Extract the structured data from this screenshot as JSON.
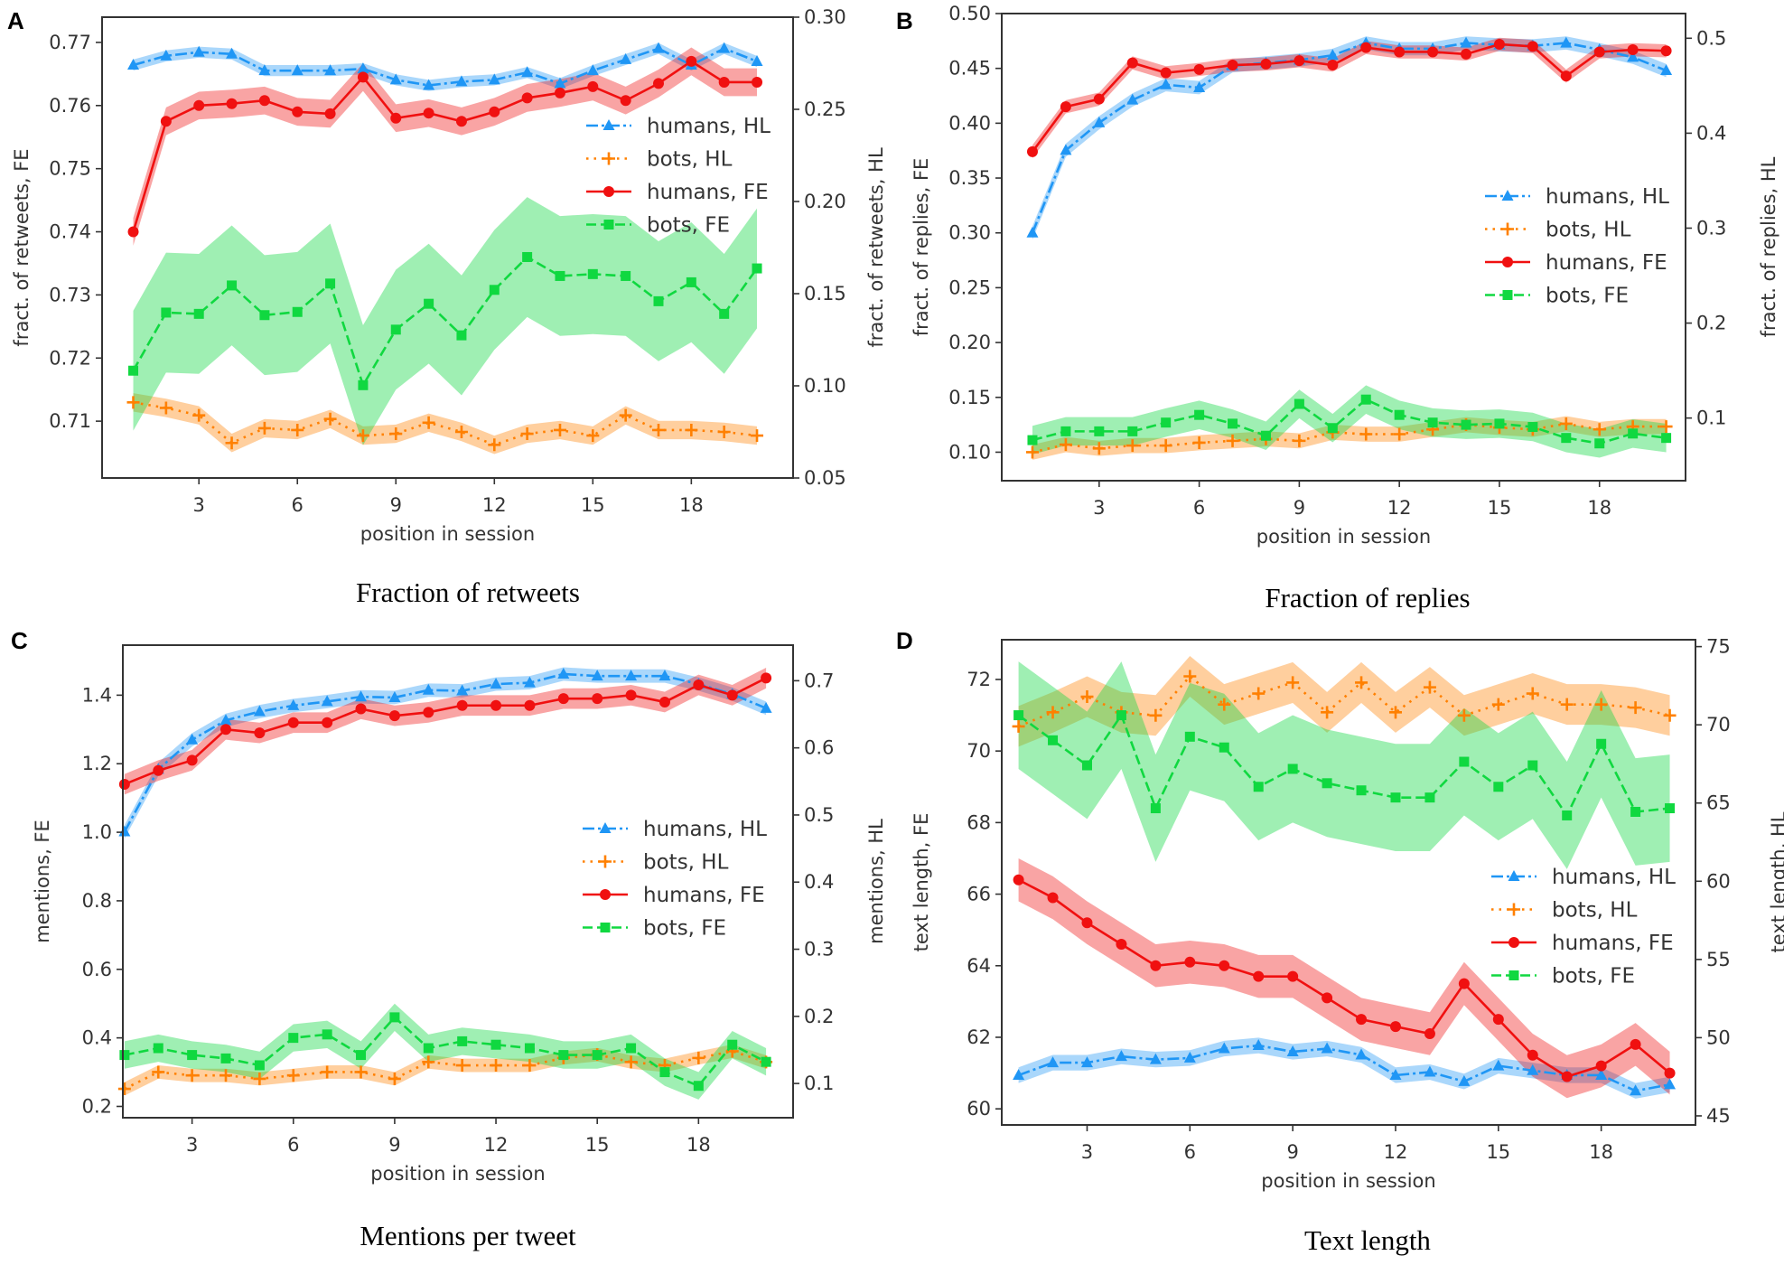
{
  "chart_data": [
    {
      "type": "line",
      "panel_label": "A",
      "title": "Fraction of retweets",
      "xlabel": "position in session",
      "ylabel_left": "fract. of retweets, FE",
      "ylabel_right": "fract. of retweets, HL",
      "xlim": [
        0.05,
        21.1
      ],
      "ylim_left": [
        0.701,
        0.774
      ],
      "ylim_right": [
        0.05,
        0.3
      ],
      "xticks": [
        "3",
        "6",
        "9",
        "12",
        "15",
        "18"
      ],
      "yticks_left": [
        "0.71",
        "0.72",
        "0.73",
        "0.74",
        "0.75",
        "0.76",
        "0.77"
      ],
      "yticks_right": [
        "0.05",
        "0.10",
        "0.15",
        "0.20",
        "0.25",
        "0.30"
      ],
      "grid": false,
      "legend": "center-right",
      "x": [
        1,
        2,
        3,
        4,
        5,
        6,
        7,
        8,
        9,
        10,
        11,
        12,
        13,
        14,
        15,
        16,
        17,
        18,
        19,
        20
      ],
      "series": [
        {
          "name": "humans, HL",
          "axis": "right",
          "color": "#1f96f5",
          "style": "dashdot",
          "marker": "triangle",
          "band": 0.003,
          "values": [
            0.274,
            0.279,
            0.281,
            0.28,
            0.271,
            0.271,
            0.271,
            0.272,
            0.266,
            0.263,
            0.265,
            0.266,
            0.27,
            0.264,
            0.271,
            0.277,
            0.283,
            0.274,
            0.283,
            0.276
          ]
        },
        {
          "name": "bots, HL",
          "axis": "right",
          "color": "#ff8000",
          "style": "dotted",
          "marker": "plus",
          "band": 0.005,
          "values": [
            0.091,
            0.088,
            0.084,
            0.069,
            0.077,
            0.076,
            0.082,
            0.073,
            0.074,
            0.08,
            0.075,
            0.068,
            0.074,
            0.076,
            0.073,
            0.084,
            0.076,
            0.076,
            0.075,
            0.073
          ]
        },
        {
          "name": "humans, FE",
          "axis": "left",
          "color": "#f01010",
          "style": "solid",
          "marker": "circle",
          "band": 0.0022,
          "values": [
            0.74,
            0.7575,
            0.76,
            0.7603,
            0.7608,
            0.759,
            0.7587,
            0.7645,
            0.758,
            0.7588,
            0.7575,
            0.759,
            0.7612,
            0.762,
            0.763,
            0.7608,
            0.7635,
            0.767,
            0.7637,
            0.7637
          ]
        },
        {
          "name": "bots, FE",
          "axis": "left",
          "color": "#10d840",
          "style": "dashed",
          "marker": "square",
          "band": 0.0095,
          "values": [
            0.718,
            0.7272,
            0.727,
            0.7315,
            0.7268,
            0.7273,
            0.7318,
            0.7157,
            0.7245,
            0.7286,
            0.7236,
            0.7308,
            0.736,
            0.733,
            0.7333,
            0.733,
            0.729,
            0.732,
            0.727,
            0.7342
          ]
        }
      ]
    },
    {
      "type": "line",
      "panel_label": "B",
      "title": "Fraction of replies",
      "xlabel": "position in session",
      "ylabel_left": "fract. of replies, FE",
      "ylabel_right": "fract. of replies, HL",
      "xlim": [
        0.08,
        20.58
      ],
      "ylim_left": [
        0.074,
        0.5
      ],
      "ylim_right": [
        0.034,
        0.526
      ],
      "xticks": [
        "3",
        "6",
        "9",
        "12",
        "15",
        "18"
      ],
      "yticks_left": [
        "0.10",
        "0.15",
        "0.20",
        "0.25",
        "0.30",
        "0.35",
        "0.40",
        "0.45",
        "0.50"
      ],
      "yticks_right": [
        "0.1",
        "0.2",
        "0.3",
        "0.4",
        "0.5"
      ],
      "grid": false,
      "legend": "center-right",
      "x": [
        1,
        2,
        3,
        4,
        5,
        6,
        7,
        8,
        9,
        10,
        11,
        12,
        13,
        14,
        15,
        16,
        17,
        18,
        19,
        20
      ],
      "series": [
        {
          "name": "humans, HL",
          "axis": "right",
          "color": "#1f96f5",
          "style": "dashdot",
          "marker": "triangle",
          "band": 0.007,
          "values": [
            0.295,
            0.382,
            0.411,
            0.435,
            0.451,
            0.448,
            0.471,
            0.474,
            0.477,
            0.482,
            0.495,
            0.489,
            0.489,
            0.495,
            0.493,
            0.492,
            0.495,
            0.488,
            0.48,
            0.466
          ]
        },
        {
          "name": "bots, HL",
          "axis": "right",
          "color": "#ff8000",
          "style": "dotted",
          "marker": "plus",
          "band": 0.008,
          "values": [
            0.064,
            0.072,
            0.068,
            0.071,
            0.071,
            0.074,
            0.076,
            0.078,
            0.076,
            0.085,
            0.083,
            0.083,
            0.088,
            0.093,
            0.09,
            0.088,
            0.094,
            0.088,
            0.091,
            0.091
          ]
        },
        {
          "name": "humans, FE",
          "axis": "left",
          "color": "#f01010",
          "style": "solid",
          "marker": "circle",
          "band": 0.006,
          "values": [
            0.374,
            0.415,
            0.422,
            0.455,
            0.446,
            0.449,
            0.453,
            0.454,
            0.457,
            0.453,
            0.469,
            0.465,
            0.465,
            0.463,
            0.472,
            0.47,
            0.443,
            0.465,
            0.467,
            0.466
          ]
        },
        {
          "name": "bots, FE",
          "axis": "left",
          "color": "#10d840",
          "style": "dashed",
          "marker": "square",
          "band": 0.013,
          "values": [
            0.111,
            0.119,
            0.119,
            0.119,
            0.127,
            0.134,
            0.126,
            0.115,
            0.144,
            0.122,
            0.148,
            0.134,
            0.127,
            0.125,
            0.126,
            0.123,
            0.113,
            0.108,
            0.117,
            0.113
          ]
        }
      ]
    },
    {
      "type": "line",
      "panel_label": "C",
      "title": "Mentions per tweet",
      "xlabel": "position in session",
      "ylabel_left": "mentions, FE",
      "ylabel_right": "mentions, HL",
      "xlim": [
        0.95,
        20.8
      ],
      "ylim_left": [
        0.167,
        1.546
      ],
      "ylim_right": [
        0.049,
        0.753
      ],
      "xticks": [
        "3",
        "6",
        "9",
        "12",
        "15",
        "18"
      ],
      "yticks_left": [
        "0.2",
        "0.4",
        "0.6",
        "0.8",
        "1.0",
        "1.2",
        "1.4"
      ],
      "yticks_right": [
        "0.1",
        "0.2",
        "0.3",
        "0.4",
        "0.5",
        "0.6",
        "0.7"
      ],
      "grid": false,
      "legend": "center-right",
      "x": [
        1,
        2,
        3,
        4,
        5,
        6,
        7,
        8,
        9,
        10,
        11,
        12,
        13,
        14,
        15,
        16,
        17,
        18,
        19,
        20
      ],
      "series": [
        {
          "name": "humans, HL",
          "axis": "right",
          "color": "#1f96f5",
          "style": "dashdot",
          "marker": "triangle",
          "band": 0.01,
          "values": [
            0.475,
            0.568,
            0.612,
            0.641,
            0.654,
            0.663,
            0.669,
            0.676,
            0.675,
            0.686,
            0.685,
            0.695,
            0.697,
            0.71,
            0.707,
            0.707,
            0.707,
            0.695,
            0.68,
            0.659
          ]
        },
        {
          "name": "bots, HL",
          "axis": "right",
          "color": "#ff8000",
          "style": "dotted",
          "marker": "plus",
          "band": 0.01,
          "values": [
            0.092,
            0.117,
            0.112,
            0.112,
            0.107,
            0.112,
            0.117,
            0.117,
            0.107,
            0.132,
            0.127,
            0.127,
            0.127,
            0.138,
            0.143,
            0.132,
            0.127,
            0.138,
            0.148,
            0.132
          ]
        },
        {
          "name": "humans, FE",
          "axis": "left",
          "color": "#f01010",
          "style": "solid",
          "marker": "circle",
          "band": 0.03,
          "values": [
            1.14,
            1.18,
            1.21,
            1.3,
            1.29,
            1.32,
            1.32,
            1.36,
            1.34,
            1.35,
            1.37,
            1.37,
            1.37,
            1.39,
            1.39,
            1.4,
            1.38,
            1.43,
            1.4,
            1.45
          ]
        },
        {
          "name": "bots, FE",
          "axis": "left",
          "color": "#10d840",
          "style": "dashed",
          "marker": "square",
          "band": 0.04,
          "values": [
            0.35,
            0.37,
            0.35,
            0.34,
            0.32,
            0.4,
            0.41,
            0.35,
            0.46,
            0.37,
            0.39,
            0.38,
            0.37,
            0.35,
            0.35,
            0.37,
            0.3,
            0.26,
            0.38,
            0.33
          ]
        }
      ]
    },
    {
      "type": "line",
      "panel_label": "D",
      "title": "Text length",
      "xlabel": "position in session",
      "ylabel_left": "text length, FE",
      "ylabel_right": "text length, HL",
      "xlim": [
        0.51,
        20.75
      ],
      "ylim_left": [
        59.55,
        73.11
      ],
      "ylim_right": [
        44.42,
        75.44
      ],
      "xticks": [
        "3",
        "6",
        "9",
        "12",
        "15",
        "18"
      ],
      "yticks_left": [
        "60",
        "62",
        "64",
        "66",
        "68",
        "70",
        "72"
      ],
      "yticks_right": [
        "45",
        "50",
        "55",
        "60",
        "65",
        "70",
        "75"
      ],
      "grid": false,
      "legend": "center-right",
      "x": [
        1,
        2,
        3,
        4,
        5,
        6,
        7,
        8,
        9,
        10,
        11,
        12,
        13,
        14,
        15,
        16,
        17,
        18,
        19,
        20
      ],
      "series": [
        {
          "name": "humans, HL",
          "axis": "right",
          "color": "#1f96f5",
          "style": "dashdot",
          "marker": "triangle",
          "band": 0.5,
          "values": [
            47.6,
            48.4,
            48.4,
            48.8,
            48.6,
            48.7,
            49.3,
            49.5,
            49.1,
            49.3,
            48.9,
            47.6,
            47.8,
            47.2,
            48.2,
            47.9,
            47.6,
            47.6,
            46.6,
            47.0
          ]
        },
        {
          "name": "bots, HL",
          "axis": "right",
          "color": "#ff8000",
          "style": "dotted",
          "marker": "plus",
          "band": 1.3,
          "values": [
            69.9,
            70.8,
            71.8,
            70.8,
            70.6,
            73.1,
            71.3,
            72.0,
            72.7,
            70.8,
            72.7,
            70.8,
            72.4,
            70.6,
            71.3,
            72.0,
            71.3,
            71.3,
            71.1,
            70.6
          ]
        },
        {
          "name": "humans, FE",
          "axis": "left",
          "color": "#f01010",
          "style": "solid",
          "marker": "circle",
          "band": 0.6,
          "values": [
            66.4,
            65.9,
            65.2,
            64.6,
            64.0,
            64.1,
            64.0,
            63.7,
            63.7,
            63.1,
            62.5,
            62.3,
            62.1,
            63.5,
            62.5,
            61.5,
            60.9,
            61.2,
            61.8,
            61.0
          ]
        },
        {
          "name": "bots, FE",
          "axis": "left",
          "color": "#10d840",
          "style": "dashed",
          "marker": "square",
          "band": 1.5,
          "values": [
            71.0,
            70.3,
            69.6,
            71.0,
            68.4,
            70.4,
            70.1,
            69.0,
            69.5,
            69.1,
            68.9,
            68.7,
            68.7,
            69.7,
            69.0,
            69.6,
            68.2,
            70.2,
            68.3,
            68.4
          ]
        }
      ]
    }
  ]
}
